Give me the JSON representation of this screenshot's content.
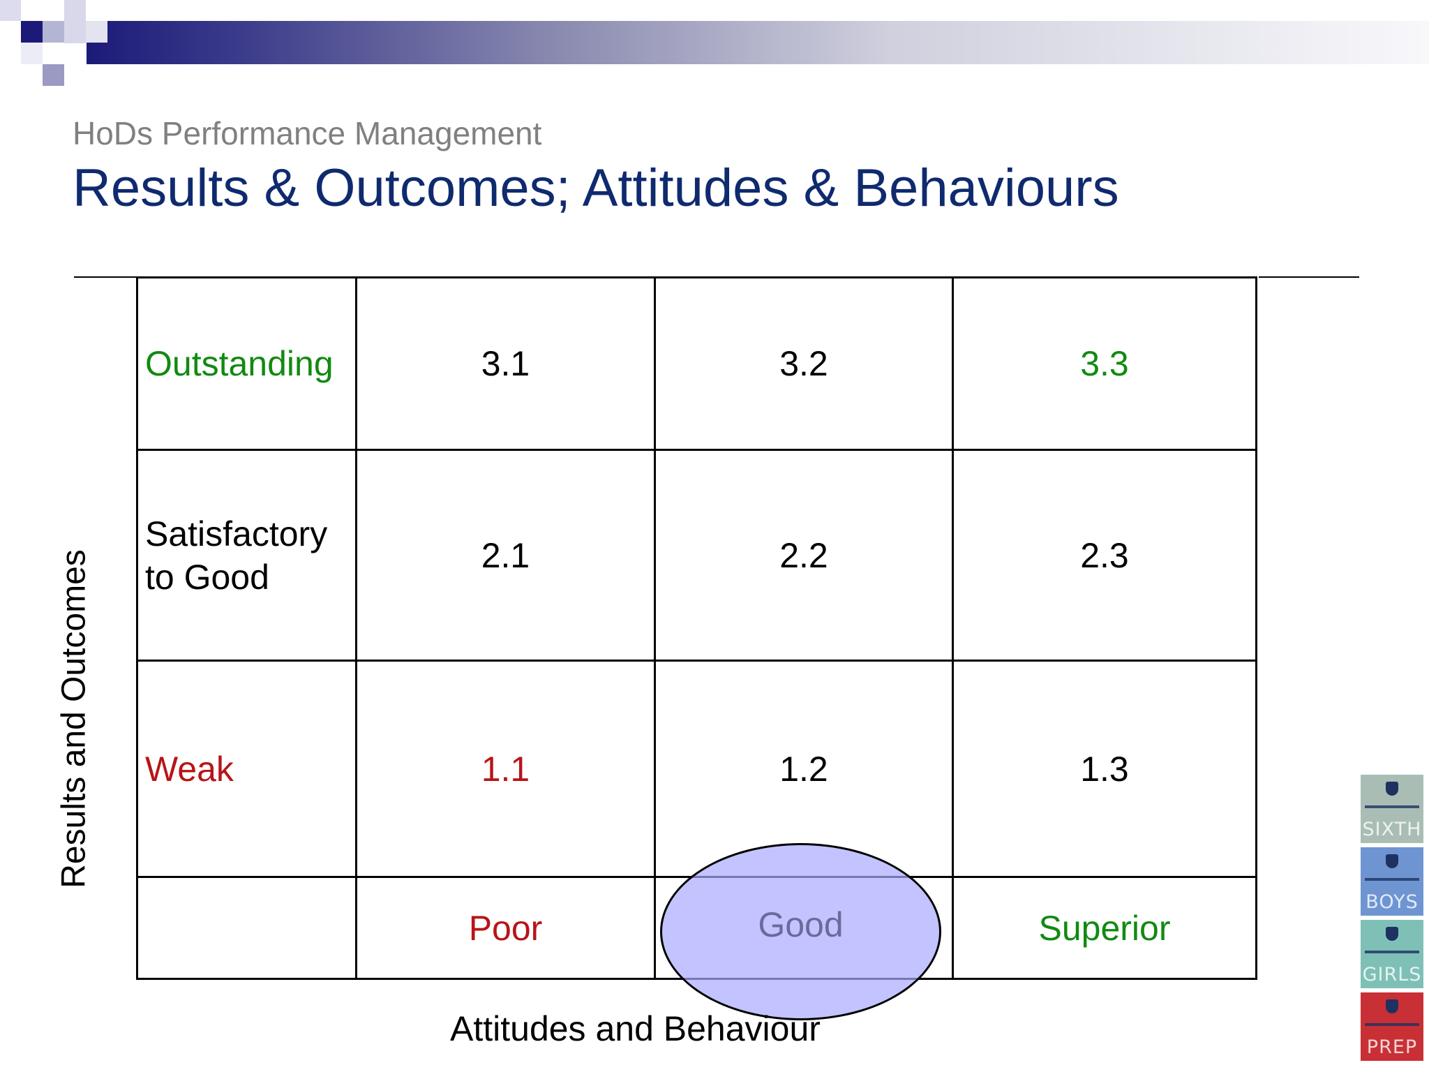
{
  "slide": {
    "subtitle": "HoDs Performance Management",
    "title": "Results & Outcomes; Attitudes & Behaviours"
  },
  "matrix": {
    "y_axis_label": "Results and Outcomes",
    "x_axis_label": "Attitudes and Behaviour",
    "rows": [
      {
        "label": "Outstanding",
        "label_color": "#118a11",
        "cells": [
          "3.1",
          "3.2",
          "3.3"
        ]
      },
      {
        "label": "Satisfactory to Good",
        "label_color": "#000000",
        "cells": [
          "2.1",
          "2.2",
          "2.3"
        ]
      },
      {
        "label": "Weak",
        "label_color": "#b81418",
        "cells": [
          "1.1",
          "1.2",
          "1.3"
        ]
      }
    ],
    "columns": [
      {
        "label": "Poor",
        "color": "#b81418"
      },
      {
        "label": "Good",
        "color": "#6a6a9c",
        "highlighted": true
      },
      {
        "label": "Superior",
        "color": "#118a11"
      }
    ],
    "highlight_color": "#aaaaff"
  },
  "logos": [
    "SIXTH",
    "BOYS",
    "GIRLS",
    "PREP"
  ]
}
